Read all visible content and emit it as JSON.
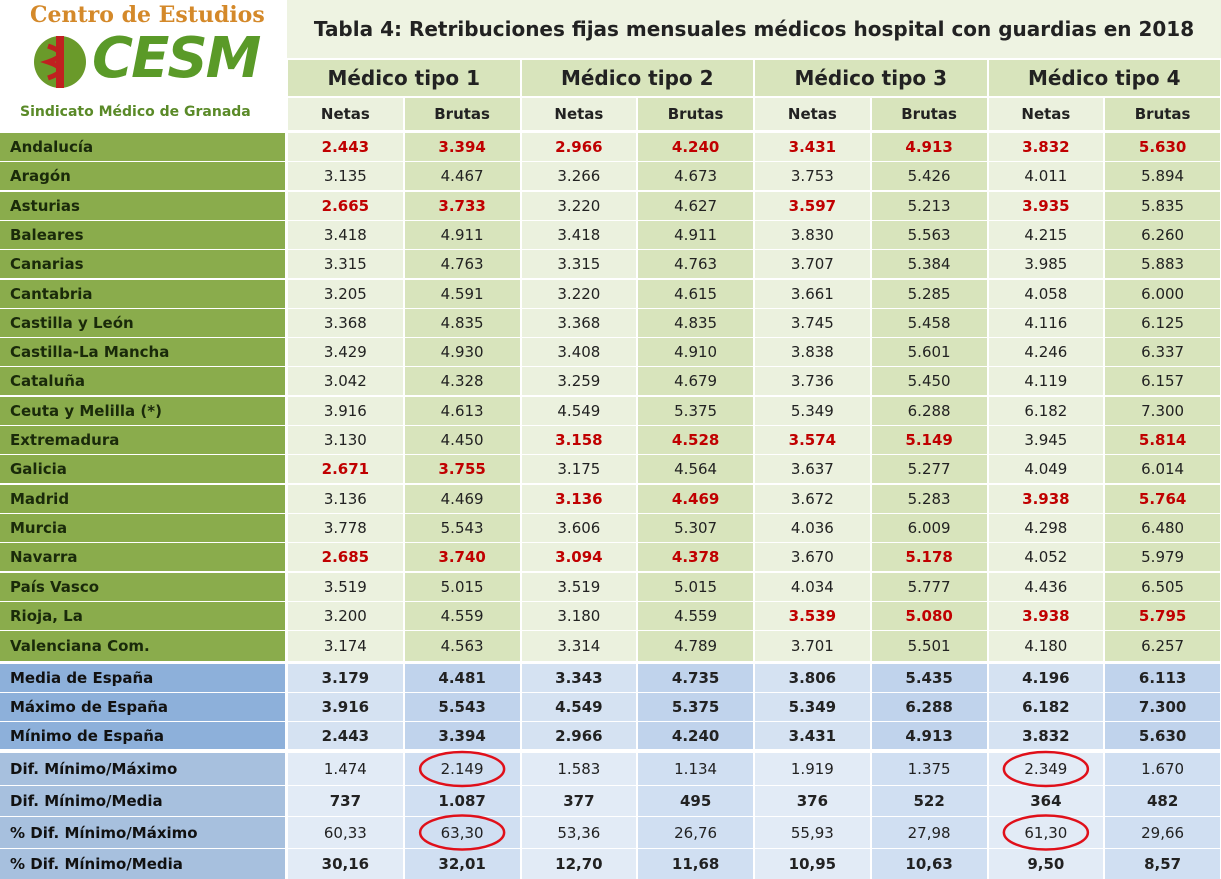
{
  "header": {
    "logo_top": "Centro de Estudios",
    "logo_mark": "CESM",
    "logo_bottom": "Sindicato Médico de Granada"
  },
  "table": {
    "title": "Tabla 4: Retribuciones fijas mensuales médicos hospital con guardias en 2018",
    "groups": [
      "Médico tipo 1",
      "Médico tipo 2",
      "Médico tipo 3",
      "Médico tipo 4"
    ],
    "subheaders": [
      "Netas",
      "Brutas",
      "Netas",
      "Brutas",
      "Netas",
      "Brutas",
      "Netas",
      "Brutas"
    ],
    "highlight_color": "#c00000",
    "circle_color": "#e0101a",
    "rows": [
      {
        "label": "Andalucía",
        "values": [
          "2.443",
          "3.394",
          "2.966",
          "4.240",
          "3.431",
          "4.913",
          "3.832",
          "5.630"
        ],
        "highlighted": [
          0,
          1,
          2,
          3,
          4,
          5,
          6,
          7
        ]
      },
      {
        "label": "Aragón",
        "values": [
          "3.135",
          "4.467",
          "3.266",
          "4.673",
          "3.753",
          "5.426",
          "4.011",
          "5.894"
        ]
      },
      {
        "label": "Asturias",
        "values": [
          "2.665",
          "3.733",
          "3.220",
          "4.627",
          "3.597",
          "5.213",
          "3.935",
          "5.835"
        ],
        "highlighted": [
          0,
          1,
          4,
          6
        ]
      },
      {
        "label": "Baleares",
        "values": [
          "3.418",
          "4.911",
          "3.418",
          "4.911",
          "3.830",
          "5.563",
          "4.215",
          "6.260"
        ]
      },
      {
        "label": "Canarias",
        "values": [
          "3.315",
          "4.763",
          "3.315",
          "4.763",
          "3.707",
          "5.384",
          "3.985",
          "5.883"
        ]
      },
      {
        "label": "Cantabria",
        "values": [
          "3.205",
          "4.591",
          "3.220",
          "4.615",
          "3.661",
          "5.285",
          "4.058",
          "6.000"
        ]
      },
      {
        "label": "Castilla y León",
        "values": [
          "3.368",
          "4.835",
          "3.368",
          "4.835",
          "3.745",
          "5.458",
          "4.116",
          "6.125"
        ]
      },
      {
        "label": "Castilla-La Mancha",
        "values": [
          "3.429",
          "4.930",
          "3.408",
          "4.910",
          "3.838",
          "5.601",
          "4.246",
          "6.337"
        ]
      },
      {
        "label": "Cataluña",
        "values": [
          "3.042",
          "4.328",
          "3.259",
          "4.679",
          "3.736",
          "5.450",
          "4.119",
          "6.157"
        ]
      },
      {
        "label": "Ceuta y Melilla (*)",
        "values": [
          "3.916",
          "4.613",
          "4.549",
          "5.375",
          "5.349",
          "6.288",
          "6.182",
          "7.300"
        ]
      },
      {
        "label": "Extremadura",
        "values": [
          "3.130",
          "4.450",
          "3.158",
          "4.528",
          "3.574",
          "5.149",
          "3.945",
          "5.814"
        ],
        "highlighted": [
          2,
          3,
          4,
          5,
          7
        ]
      },
      {
        "label": "Galicia",
        "values": [
          "2.671",
          "3.755",
          "3.175",
          "4.564",
          "3.637",
          "5.277",
          "4.049",
          "6.014"
        ],
        "highlighted": [
          0,
          1
        ]
      },
      {
        "label": "Madrid",
        "values": [
          "3.136",
          "4.469",
          "3.136",
          "4.469",
          "3.672",
          "5.283",
          "3.938",
          "5.764"
        ],
        "highlighted": [
          2,
          3,
          6,
          7
        ]
      },
      {
        "label": "Murcia",
        "values": [
          "3.778",
          "5.543",
          "3.606",
          "5.307",
          "4.036",
          "6.009",
          "4.298",
          "6.480"
        ]
      },
      {
        "label": "Navarra",
        "values": [
          "2.685",
          "3.740",
          "3.094",
          "4.378",
          "3.670",
          "5.178",
          "4.052",
          "5.979"
        ],
        "highlighted": [
          0,
          1,
          2,
          3,
          5
        ]
      },
      {
        "label": "País Vasco",
        "values": [
          "3.519",
          "5.015",
          "3.519",
          "5.015",
          "4.034",
          "5.777",
          "4.436",
          "6.505"
        ]
      },
      {
        "label": "Rioja, La",
        "values": [
          "3.200",
          "4.559",
          "3.180",
          "4.559",
          "3.539",
          "5.080",
          "3.938",
          "5.795"
        ],
        "highlighted": [
          4,
          5,
          6,
          7
        ]
      },
      {
        "label": "Valenciana Com.",
        "values": [
          "3.174",
          "4.563",
          "3.314",
          "4.789",
          "3.701",
          "5.501",
          "4.180",
          "6.257"
        ]
      }
    ],
    "summary": [
      {
        "label": "Media de España",
        "values": [
          "3.179",
          "4.481",
          "3.343",
          "4.735",
          "3.806",
          "5.435",
          "4.196",
          "6.113"
        ],
        "bold": true
      },
      {
        "label": "Máximo de España",
        "values": [
          "3.916",
          "5.543",
          "4.549",
          "5.375",
          "5.349",
          "6.288",
          "6.182",
          "7.300"
        ],
        "bold": true
      },
      {
        "label": "Mínimo de España",
        "values": [
          "2.443",
          "3.394",
          "2.966",
          "4.240",
          "3.431",
          "4.913",
          "3.832",
          "5.630"
        ],
        "bold": true
      },
      {
        "label": "Dif. Mínimo/Máximo",
        "values": [
          "1.474",
          "2.149",
          "1.583",
          "1.134",
          "1.919",
          "1.375",
          "2.349",
          "1.670"
        ],
        "circled": [
          1,
          6
        ]
      },
      {
        "label": "Dif. Mínimo/Media",
        "values": [
          "737",
          "1.087",
          "377",
          "495",
          "376",
          "522",
          "364",
          "482"
        ],
        "bold": true
      },
      {
        "label": "% Dif. Mínimo/Máximo",
        "values": [
          "60,33",
          "63,30",
          "53,36",
          "26,76",
          "55,93",
          "27,98",
          "61,30",
          "29,66"
        ],
        "circled": [
          1,
          6
        ]
      },
      {
        "label": "% Dif. Mínimo/Media",
        "values": [
          "30,16",
          "32,01",
          "12,70",
          "11,68",
          "10,95",
          "10,63",
          "9,50",
          "8,57"
        ],
        "bold": true
      }
    ]
  }
}
